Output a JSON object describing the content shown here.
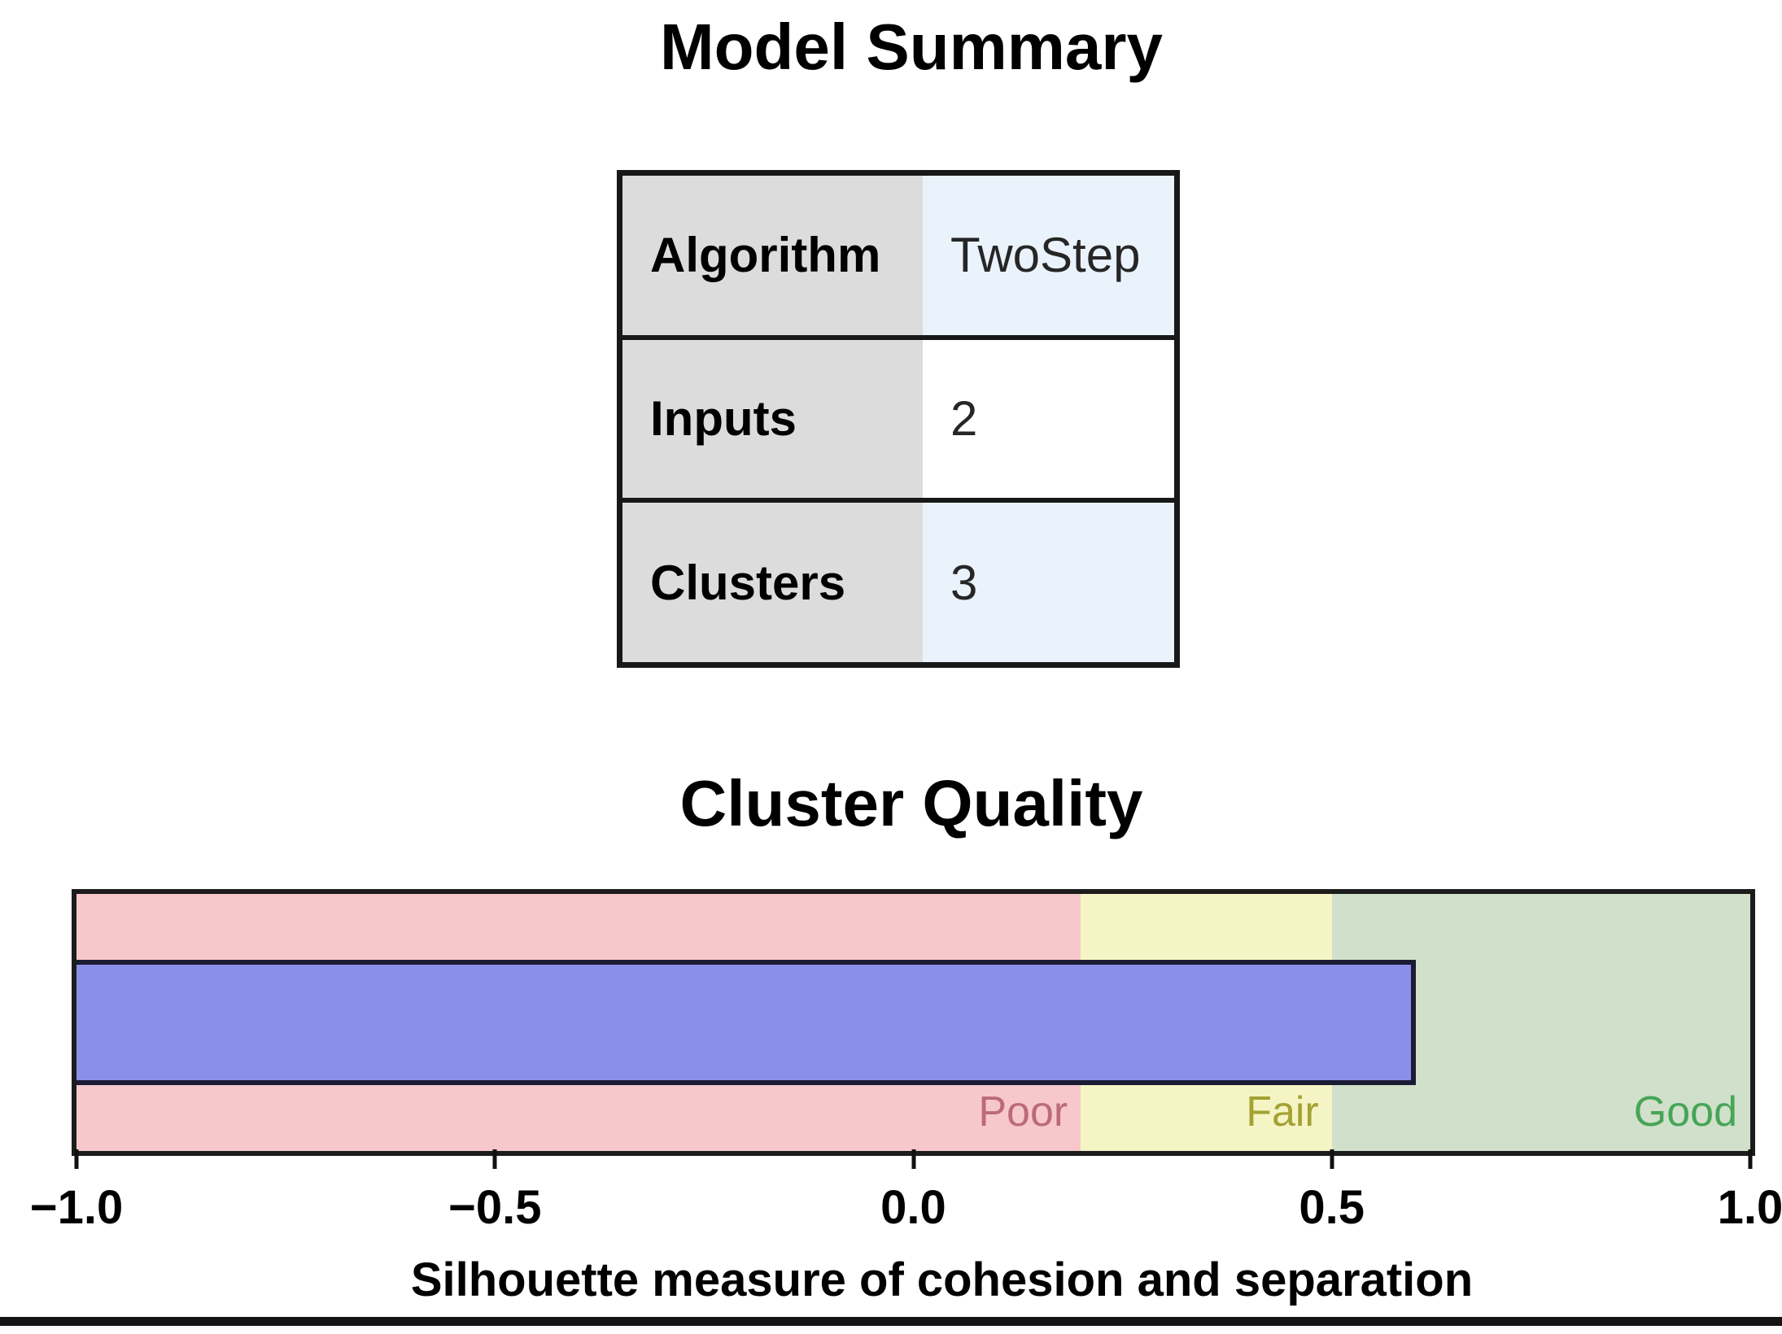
{
  "model_summary": {
    "title": "Model Summary",
    "rows": [
      {
        "label": "Algorithm",
        "value": "TwoStep"
      },
      {
        "label": "Inputs",
        "value": "2"
      },
      {
        "label": "Clusters",
        "value": "3"
      }
    ]
  },
  "chart_data": {
    "type": "bar",
    "title": "Cluster Quality",
    "xlabel": "Silhouette measure of cohesion and separation",
    "xlim": [
      -1.0,
      1.0
    ],
    "tick_values": [
      -1.0,
      -0.5,
      0.0,
      0.5,
      1.0
    ],
    "tick_labels": [
      "−1.0",
      "−0.5",
      "0.0",
      "0.5",
      "1.0"
    ],
    "value": 0.6,
    "series": [
      {
        "name": "Silhouette measure of cohesion and separation",
        "value": 0.6
      }
    ],
    "bar_color": "#8a90e8",
    "bar_border_color": "#1b1b33",
    "grid": false,
    "zones": [
      {
        "label": "Poor",
        "from": -1.0,
        "to": 0.2,
        "fill": "#f6c8cb",
        "label_color": "#bc6b76"
      },
      {
        "label": "Fair",
        "from": 0.2,
        "to": 0.5,
        "fill": "#f5f4c5",
        "label_color": "#a3a233"
      },
      {
        "label": "Good",
        "from": 0.5,
        "to": 1.0,
        "fill": "#d0e0cb",
        "label_color": "#46a556"
      }
    ]
  }
}
